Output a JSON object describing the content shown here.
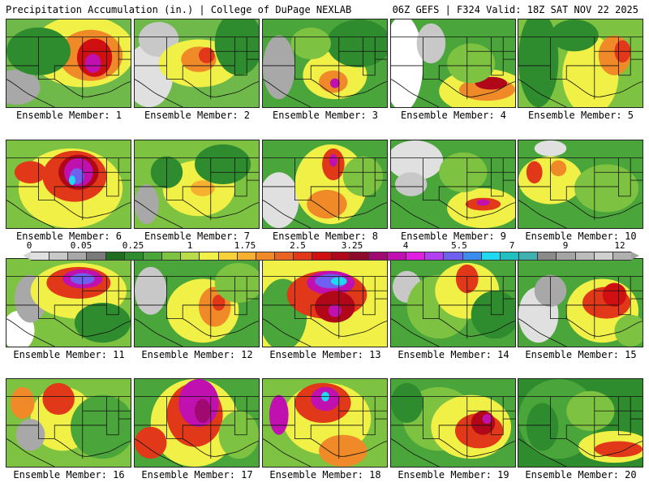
{
  "header": {
    "left": "Precipitation Accumulation (in.) | College of DuPage NEXLAB",
    "right": "06Z GEFS | F324 Valid: 18Z SAT NOV 22 2025"
  },
  "colorbar": {
    "tick_labels": [
      "0",
      "0.05",
      "0.25",
      "1",
      "1.75",
      "2.5",
      "3.25",
      "4",
      "5.5",
      "7",
      "9",
      "12"
    ],
    "colors": [
      "#e0e0e0",
      "#c8c8c8",
      "#a8a8a8",
      "#7a7a7a",
      "#1e6e1e",
      "#2e8b2e",
      "#4aa53a",
      "#7ec242",
      "#b8dc4a",
      "#f0f046",
      "#f8d23a",
      "#f8b030",
      "#f08a28",
      "#e86420",
      "#e03818",
      "#d01010",
      "#b00818",
      "#8e0a2a",
      "#a00a70",
      "#c010b0",
      "#e020e0",
      "#b040f0",
      "#7060f0",
      "#3c8cf0",
      "#20d8f0",
      "#20c0c0",
      "#40b0b0",
      "#8a8a8a",
      "#a4a4a4",
      "#bcbcbc",
      "#d0d0d0",
      "#b0b0b0"
    ]
  },
  "members": [
    {
      "label": "Ensemble Member: 1",
      "base": "#6fb84a",
      "blobs": [
        [
          "#a8a8a8",
          12,
          85,
          30,
          22
        ],
        [
          "#f0f046",
          95,
          40,
          65,
          45
        ],
        [
          "#f08a28",
          105,
          45,
          40,
          32
        ],
        [
          "#d01010",
          110,
          48,
          22,
          24
        ],
        [
          "#c010b0",
          108,
          55,
          10,
          12
        ],
        [
          "#2e8b2e",
          40,
          40,
          40,
          30
        ]
      ]
    },
    {
      "label": "Ensemble Member: 2",
      "base": "#6fb84a",
      "blobs": [
        [
          "#e0e0e0",
          18,
          70,
          30,
          40
        ],
        [
          "#c8c8c8",
          30,
          25,
          25,
          22
        ],
        [
          "#f0f046",
          80,
          55,
          50,
          30
        ],
        [
          "#f08a28",
          80,
          50,
          22,
          16
        ],
        [
          "#e03818",
          90,
          45,
          10,
          10
        ],
        [
          "#2e8b2e",
          130,
          30,
          30,
          40
        ]
      ]
    },
    {
      "label": "Ensemble Member: 3",
      "base": "#4aa53a",
      "blobs": [
        [
          "#a8a8a8",
          20,
          60,
          20,
          40
        ],
        [
          "#f0f046",
          90,
          70,
          40,
          30
        ],
        [
          "#f08a28",
          88,
          78,
          18,
          14
        ],
        [
          "#c010b0",
          90,
          80,
          6,
          6
        ],
        [
          "#2e8b2e",
          120,
          30,
          40,
          30
        ],
        [
          "#7ec242",
          60,
          30,
          25,
          20
        ]
      ]
    },
    {
      "label": "Ensemble Member: 4",
      "base": "#4aa53a",
      "blobs": [
        [
          "#ffffff",
          15,
          55,
          25,
          60
        ],
        [
          "#c8c8c8",
          50,
          30,
          18,
          25
        ],
        [
          "#f0f046",
          115,
          90,
          55,
          28
        ],
        [
          "#f08a28",
          120,
          88,
          35,
          14
        ],
        [
          "#b00818",
          125,
          80,
          20,
          8
        ],
        [
          "#7ec242",
          100,
          55,
          30,
          25
        ]
      ]
    },
    {
      "label": "Ensemble Member: 5",
      "base": "#7ec242",
      "blobs": [
        [
          "#2e8b2e",
          25,
          50,
          25,
          60
        ],
        [
          "#f0f046",
          90,
          70,
          35,
          50
        ],
        [
          "#f08a28",
          120,
          45,
          20,
          25
        ],
        [
          "#e03818",
          130,
          40,
          10,
          14
        ],
        [
          "#2e8b2e",
          70,
          20,
          30,
          20
        ]
      ]
    },
    {
      "label": "Ensemble Member: 6",
      "base": "#7ec242",
      "blobs": [
        [
          "#f0f046",
          80,
          60,
          65,
          50
        ],
        [
          "#e03818",
          85,
          45,
          40,
          32
        ],
        [
          "#b00818",
          90,
          40,
          25,
          22
        ],
        [
          "#c010b0",
          90,
          40,
          18,
          18
        ],
        [
          "#7060f0",
          88,
          45,
          9,
          10
        ],
        [
          "#20d8f0",
          82,
          50,
          4,
          6
        ],
        [
          "#e03818",
          30,
          40,
          20,
          14
        ]
      ]
    },
    {
      "label": "Ensemble Member: 7",
      "base": "#7ec242",
      "blobs": [
        [
          "#a8a8a8",
          15,
          80,
          15,
          25
        ],
        [
          "#f0f046",
          80,
          60,
          45,
          35
        ],
        [
          "#f8b030",
          85,
          60,
          15,
          10
        ],
        [
          "#2e8b2e",
          110,
          30,
          35,
          25
        ],
        [
          "#2e8b2e",
          40,
          40,
          20,
          20
        ]
      ]
    },
    {
      "label": "Ensemble Member: 8",
      "base": "#4aa53a",
      "blobs": [
        [
          "#e0e0e0",
          20,
          75,
          25,
          35
        ],
        [
          "#f0f046",
          85,
          55,
          45,
          50
        ],
        [
          "#e03818",
          88,
          30,
          14,
          20
        ],
        [
          "#c010b0",
          88,
          25,
          5,
          8
        ],
        [
          "#f08a28",
          80,
          80,
          25,
          18
        ],
        [
          "#7ec242",
          125,
          45,
          25,
          25
        ]
      ]
    },
    {
      "label": "Ensemble Member: 9",
      "base": "#4aa53a",
      "blobs": [
        [
          "#e0e0e0",
          30,
          25,
          35,
          25
        ],
        [
          "#c8c8c8",
          25,
          55,
          20,
          15
        ],
        [
          "#f0f046",
          115,
          85,
          45,
          25
        ],
        [
          "#e03818",
          115,
          80,
          22,
          8
        ],
        [
          "#c010b0",
          115,
          78,
          8,
          4
        ],
        [
          "#7ec242",
          90,
          40,
          30,
          25
        ]
      ]
    },
    {
      "label": "Ensemble Member: 10",
      "base": "#4aa53a",
      "blobs": [
        [
          "#f0f046",
          40,
          50,
          40,
          30
        ],
        [
          "#e03818",
          20,
          40,
          10,
          14
        ],
        [
          "#f08a28",
          50,
          35,
          10,
          10
        ],
        [
          "#7ec242",
          110,
          60,
          40,
          30
        ],
        [
          "#e0e0e0",
          40,
          10,
          20,
          10
        ]
      ]
    },
    {
      "label": "Ensemble Member: 11",
      "base": "#7ec242",
      "blobs": [
        [
          "#ffffff",
          15,
          90,
          20,
          25
        ],
        [
          "#a8a8a8",
          30,
          50,
          20,
          30
        ],
        [
          "#f0f046",
          90,
          40,
          60,
          35
        ],
        [
          "#e03818",
          90,
          30,
          40,
          20
        ],
        [
          "#c010b0",
          95,
          25,
          25,
          12
        ],
        [
          "#7060f0",
          95,
          25,
          15,
          7
        ],
        [
          "#2e8b2e",
          120,
          80,
          35,
          25
        ]
      ]
    },
    {
      "label": "Ensemble Member: 12",
      "base": "#4aa53a",
      "blobs": [
        [
          "#c8c8c8",
          20,
          40,
          20,
          30
        ],
        [
          "#f0f046",
          85,
          65,
          45,
          40
        ],
        [
          "#f08a28",
          100,
          60,
          20,
          25
        ],
        [
          "#e03818",
          105,
          55,
          8,
          10
        ],
        [
          "#7ec242",
          130,
          30,
          30,
          25
        ]
      ]
    },
    {
      "label": "Ensemble Member: 13",
      "base": "#f0f046",
      "blobs": [
        [
          "#4aa53a",
          25,
          70,
          30,
          45
        ],
        [
          "#e03818",
          80,
          45,
          50,
          30
        ],
        [
          "#c010b0",
          85,
          30,
          30,
          15
        ],
        [
          "#7060f0",
          85,
          28,
          20,
          9
        ],
        [
          "#20d8f0",
          95,
          28,
          10,
          5
        ],
        [
          "#b00818",
          90,
          60,
          25,
          20
        ],
        [
          "#c010b0",
          90,
          65,
          8,
          8
        ]
      ]
    },
    {
      "label": "Ensemble Member: 14",
      "base": "#4aa53a",
      "blobs": [
        [
          "#c8c8c8",
          20,
          35,
          18,
          20
        ],
        [
          "#7ec242",
          60,
          60,
          40,
          40
        ],
        [
          "#f0f046",
          95,
          40,
          40,
          35
        ],
        [
          "#e03818",
          95,
          25,
          14,
          18
        ],
        [
          "#2e8b2e",
          130,
          70,
          30,
          30
        ]
      ]
    },
    {
      "label": "Ensemble Member: 15",
      "base": "#4aa53a",
      "blobs": [
        [
          "#e0e0e0",
          25,
          70,
          25,
          35
        ],
        [
          "#a8a8a8",
          40,
          40,
          20,
          20
        ],
        [
          "#f0f046",
          105,
          65,
          45,
          40
        ],
        [
          "#e03818",
          110,
          55,
          30,
          20
        ],
        [
          "#d01010",
          120,
          45,
          15,
          15
        ],
        [
          "#7ec242",
          140,
          90,
          20,
          20
        ]
      ]
    },
    {
      "label": "Ensemble Member: 16",
      "base": "#7ec242",
      "blobs": [
        [
          "#f0f046",
          70,
          50,
          40,
          40
        ],
        [
          "#e03818",
          65,
          25,
          20,
          20
        ],
        [
          "#f08a28",
          20,
          30,
          15,
          20
        ],
        [
          "#4aa53a",
          120,
          60,
          40,
          40
        ],
        [
          "#a8a8a8",
          30,
          70,
          18,
          20
        ]
      ]
    },
    {
      "label": "Ensemble Member: 17",
      "base": "#4aa53a",
      "blobs": [
        [
          "#f0f046",
          75,
          55,
          55,
          55
        ],
        [
          "#e03818",
          75,
          45,
          35,
          40
        ],
        [
          "#c010b0",
          80,
          30,
          25,
          30
        ],
        [
          "#a00a70",
          85,
          40,
          10,
          15
        ],
        [
          "#e03818",
          20,
          80,
          20,
          20
        ],
        [
          "#7ec242",
          130,
          70,
          25,
          30
        ]
      ]
    },
    {
      "label": "Ensemble Member: 18",
      "base": "#7ec242",
      "blobs": [
        [
          "#f0f046",
          80,
          50,
          55,
          45
        ],
        [
          "#e03818",
          75,
          30,
          35,
          25
        ],
        [
          "#c010b0",
          78,
          25,
          18,
          15
        ],
        [
          "#20d8f0",
          78,
          22,
          5,
          6
        ],
        [
          "#f08a28",
          100,
          90,
          30,
          20
        ],
        [
          "#c010b0",
          20,
          45,
          12,
          25
        ]
      ]
    },
    {
      "label": "Ensemble Member: 19",
      "base": "#4aa53a",
      "blobs": [
        [
          "#7ec242",
          60,
          50,
          45,
          40
        ],
        [
          "#f0f046",
          100,
          60,
          50,
          40
        ],
        [
          "#e03818",
          110,
          65,
          30,
          22
        ],
        [
          "#b00818",
          115,
          55,
          15,
          15
        ],
        [
          "#c010b0",
          120,
          50,
          6,
          6
        ],
        [
          "#2e8b2e",
          20,
          30,
          20,
          25
        ]
      ]
    },
    {
      "label": "Ensemble Member: 20",
      "base": "#2e8b2e",
      "blobs": [
        [
          "#4aa53a",
          50,
          50,
          50,
          50
        ],
        [
          "#f0f046",
          120,
          85,
          45,
          20
        ],
        [
          "#e03818",
          125,
          88,
          30,
          10
        ],
        [
          "#7ec242",
          90,
          40,
          30,
          25
        ],
        [
          "#2e8b2e",
          30,
          60,
          20,
          30
        ]
      ]
    }
  ]
}
